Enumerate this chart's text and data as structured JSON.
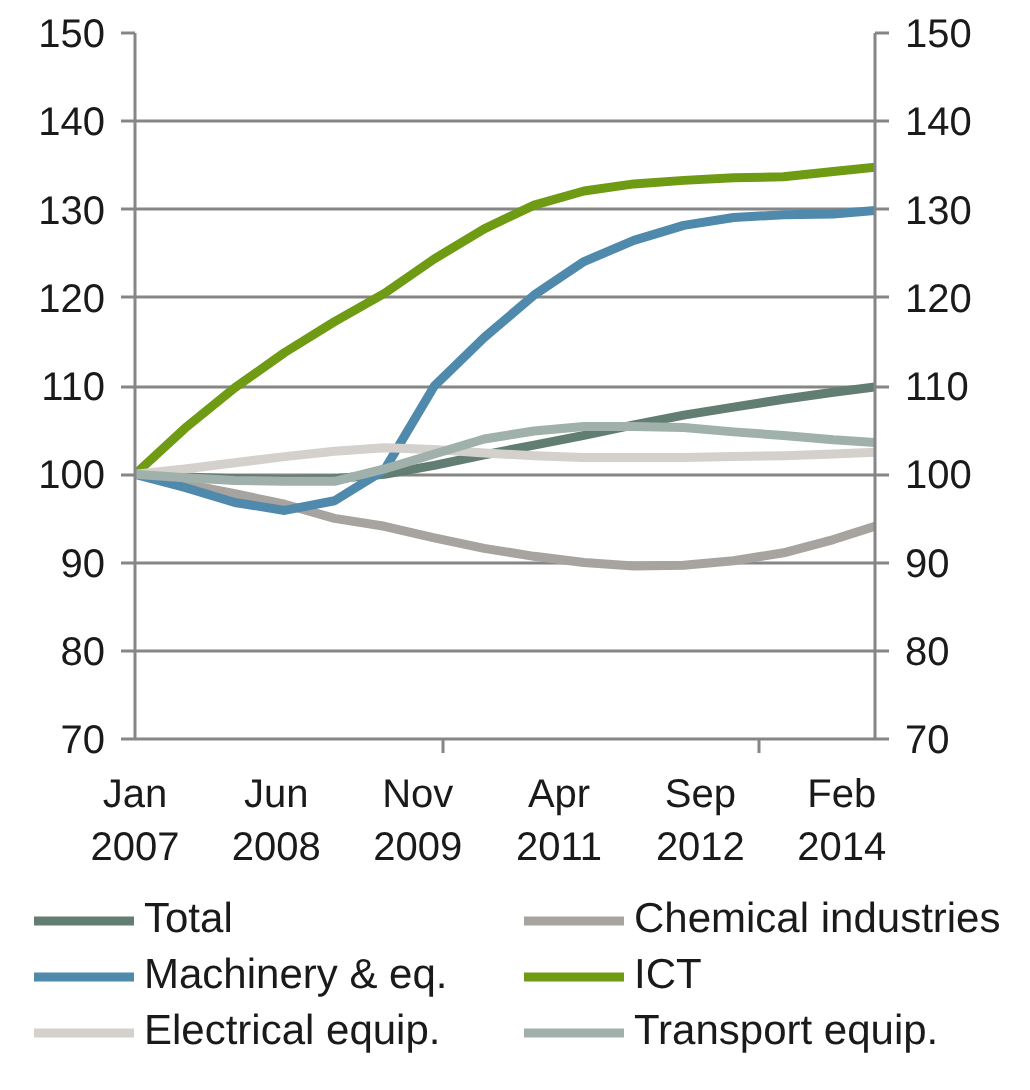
{
  "chart_data": {
    "type": "line",
    "x": [
      "2007-01",
      "2007-07",
      "2008-01",
      "2008-07",
      "2009-01",
      "2009-07",
      "2010-01",
      "2010-07",
      "2011-01",
      "2011-07",
      "2012-01",
      "2012-07",
      "2013-01",
      "2013-07",
      "2014-01",
      "2014-06"
    ],
    "series": [
      {
        "name": "Total",
        "color": "#627d72",
        "values": [
          100,
          99.7,
          99.5,
          99.4,
          99.5,
          100.0,
          101.0,
          102.2,
          103.3,
          104.4,
          105.6,
          106.7,
          107.6,
          108.5,
          109.3,
          109.9
        ]
      },
      {
        "name": "Chemical industries",
        "color": "#a7a39e",
        "values": [
          100,
          98.9,
          97.8,
          96.6,
          95.0,
          94.1,
          92.8,
          91.6,
          90.7,
          90.0,
          89.6,
          89.7,
          90.2,
          91.1,
          92.6,
          94.1
        ]
      },
      {
        "name": "Machinery & eq.",
        "color": "#4f8aad",
        "values": [
          100,
          98.5,
          96.8,
          95.9,
          97.0,
          100.5,
          110.0,
          115.5,
          120.3,
          124.1,
          126.5,
          128.2,
          129.1,
          129.4,
          129.5,
          129.9
        ]
      },
      {
        "name": "ICT",
        "color": "#6f9a13",
        "values": [
          100,
          105.2,
          109.8,
          113.8,
          117.3,
          120.5,
          124.4,
          127.8,
          130.5,
          132.1,
          132.9,
          133.3,
          133.6,
          133.7,
          134.3,
          134.8
        ]
      },
      {
        "name": "Electrical equip.",
        "color": "#d4d0cb",
        "values": [
          100,
          100.6,
          101.3,
          102.0,
          102.6,
          103.0,
          102.8,
          102.4,
          102.1,
          101.9,
          101.9,
          101.9,
          102.0,
          102.1,
          102.3,
          102.5
        ]
      },
      {
        "name": "Transport equip.",
        "color": "#9fb1aa",
        "values": [
          100,
          99.6,
          99.3,
          99.2,
          99.2,
          100.6,
          102.3,
          104.0,
          104.9,
          105.4,
          105.4,
          105.3,
          104.8,
          104.4,
          103.9,
          103.6
        ]
      }
    ],
    "xlim": [
      "2007-01",
      "2014-06"
    ],
    "xticks": [
      {
        "value": "2007-01",
        "label": "Jan 2007"
      },
      {
        "value": "2008-06",
        "label": "Jun 2008"
      },
      {
        "value": "2009-11",
        "label": "Nov 2009"
      },
      {
        "value": "2010-02",
        "label": null
      },
      {
        "value": "2011-04",
        "label": "Apr 2011"
      },
      {
        "value": "2012-09",
        "label": "Sep 2012"
      },
      {
        "value": "2013-04",
        "label": null
      },
      {
        "value": "2014-02",
        "label": "Feb 2014"
      }
    ],
    "ylim": [
      70,
      150
    ],
    "yticks": [
      70,
      80,
      90,
      100,
      110,
      120,
      130,
      140,
      150
    ],
    "y2lim": [
      70,
      150
    ],
    "y2ticks": [
      70,
      80,
      90,
      100,
      110,
      120,
      130,
      140,
      150
    ],
    "grid": "y",
    "legend": "bottom",
    "line_style": "solid"
  }
}
